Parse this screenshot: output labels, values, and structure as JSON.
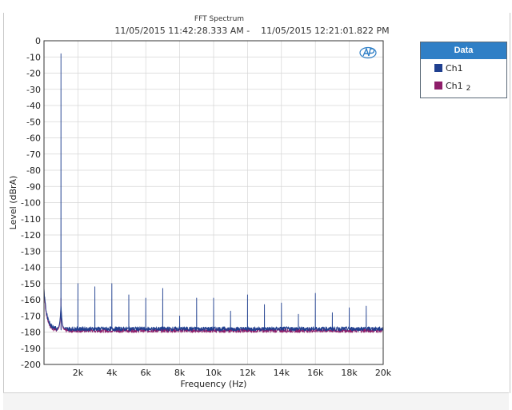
{
  "chart_data": {
    "type": "line",
    "title": "FFT Spectrum",
    "subtitle": "11/05/2015 11:42:28.333 AM -    11/05/2015 12:21:01.822 PM",
    "xlabel": "Frequency (Hz)",
    "ylabel": "Level (dBrA)",
    "xlim": [
      0,
      20000
    ],
    "ylim": [
      -200,
      0
    ],
    "x_ticks": [
      2000,
      4000,
      6000,
      8000,
      10000,
      12000,
      14000,
      16000,
      18000,
      20000
    ],
    "x_tick_labels": [
      "2k",
      "4k",
      "6k",
      "8k",
      "10k",
      "12k",
      "14k",
      "16k",
      "18k",
      "20k"
    ],
    "y_ticks": [
      0,
      -10,
      -20,
      -30,
      -40,
      -50,
      -60,
      -70,
      -80,
      -90,
      -100,
      -110,
      -120,
      -130,
      -140,
      -150,
      -160,
      -170,
      -180,
      -190,
      -200
    ],
    "grid": true,
    "legend_title": "Data",
    "legend_position": "right",
    "series": [
      {
        "name": "Ch1",
        "color": "#1f3f8f",
        "noise_floor": -178,
        "peaks": [
          {
            "x": 1000,
            "y": -8
          },
          {
            "x": 2000,
            "y": -150
          },
          {
            "x": 3000,
            "y": -152
          },
          {
            "x": 4000,
            "y": -150
          },
          {
            "x": 5000,
            "y": -157
          },
          {
            "x": 6000,
            "y": -159
          },
          {
            "x": 7000,
            "y": -153
          },
          {
            "x": 8000,
            "y": -170
          },
          {
            "x": 9000,
            "y": -159
          },
          {
            "x": 10000,
            "y": -159
          },
          {
            "x": 11000,
            "y": -167
          },
          {
            "x": 12000,
            "y": -157
          },
          {
            "x": 13000,
            "y": -163
          },
          {
            "x": 14000,
            "y": -162
          },
          {
            "x": 15000,
            "y": -169
          },
          {
            "x": 16000,
            "y": -156
          },
          {
            "x": 17000,
            "y": -168
          },
          {
            "x": 18000,
            "y": -165
          },
          {
            "x": 19000,
            "y": -164
          }
        ]
      },
      {
        "name": "Ch1",
        "subscript": "2",
        "color": "#8e1e6a",
        "noise_floor": -179,
        "peaks": [
          {
            "x": 1000,
            "y": -159
          }
        ]
      }
    ]
  }
}
